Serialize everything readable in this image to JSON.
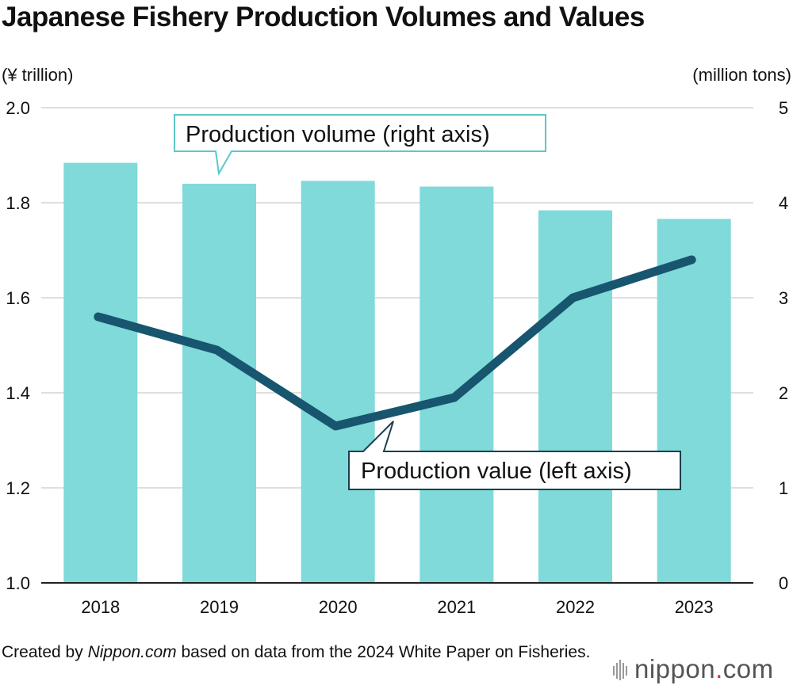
{
  "title": "Japanese Fishery Production Volumes and Values",
  "source": {
    "prefix": "Created by",
    "site": "Nippon.com",
    "suffix": "based on data from the 2024 White Paper on Fisheries."
  },
  "logo": {
    "text": "nippon",
    "dot": ".",
    "tld": "com"
  },
  "colors": {
    "bars": "#7fdad9",
    "line": "#17566e",
    "grid": "#cccccc",
    "callout_border": "#5cc8c8"
  },
  "chart_data": {
    "type": "bar",
    "categories": [
      "2018",
      "2019",
      "2020",
      "2021",
      "2022",
      "2023"
    ],
    "series": [
      {
        "name": "Production volume (right axis)",
        "type": "bar",
        "axis": "right",
        "values": [
          4.42,
          4.2,
          4.23,
          4.17,
          3.92,
          3.83
        ]
      },
      {
        "name": "Production value (left axis)",
        "type": "line",
        "axis": "left",
        "values": [
          1.56,
          1.49,
          1.33,
          1.39,
          1.6,
          1.68
        ]
      }
    ],
    "y_left": {
      "label": "(¥ trillion)",
      "ylim": [
        1.0,
        2.0
      ],
      "ticks": [
        "1.0",
        "1.2",
        "1.4",
        "1.6",
        "1.8",
        "2.0"
      ]
    },
    "y_right": {
      "label": "(million tons)",
      "ylim": [
        0,
        5
      ],
      "ticks": [
        "0",
        "1",
        "2",
        "3",
        "4",
        "5"
      ]
    },
    "grid": true,
    "legend": "callouts"
  }
}
